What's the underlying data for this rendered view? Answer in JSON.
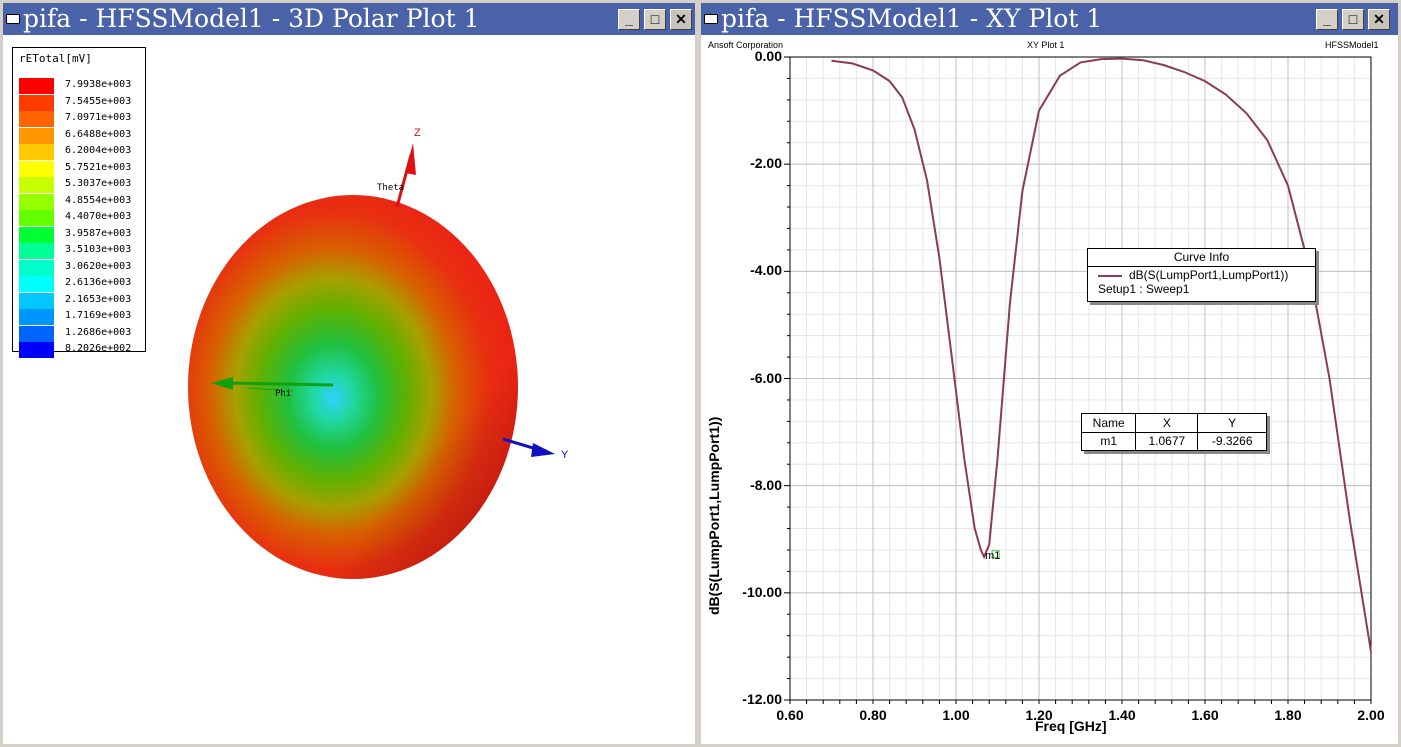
{
  "left_window": {
    "title": "pifa - HFSSModel1 - 3D Polar Plot 1",
    "legend": {
      "title": "rETotal[mV]",
      "entries": [
        {
          "value": "7.9938e+003",
          "color": "#ff0000"
        },
        {
          "value": "7.5455e+003",
          "color": "#ff3c00"
        },
        {
          "value": "7.0971e+003",
          "color": "#ff6400"
        },
        {
          "value": "6.6488e+003",
          "color": "#ff9600"
        },
        {
          "value": "6.2004e+003",
          "color": "#ffc800"
        },
        {
          "value": "5.7521e+003",
          "color": "#ffff00"
        },
        {
          "value": "5.3037e+003",
          "color": "#c8ff00"
        },
        {
          "value": "4.8554e+003",
          "color": "#96ff00"
        },
        {
          "value": "4.4070e+003",
          "color": "#64ff00"
        },
        {
          "value": "3.9587e+003",
          "color": "#00ff32"
        },
        {
          "value": "3.5103e+003",
          "color": "#00ff96"
        },
        {
          "value": "3.0620e+003",
          "color": "#00ffc8"
        },
        {
          "value": "2.6136e+003",
          "color": "#00ffff"
        },
        {
          "value": "2.1653e+003",
          "color": "#00c8ff"
        },
        {
          "value": "1.7169e+003",
          "color": "#0096ff"
        },
        {
          "value": "1.2686e+003",
          "color": "#0064ff"
        },
        {
          "value": "8.2026e+002",
          "color": "#0000ff"
        }
      ]
    },
    "axes": {
      "z": "Z",
      "y": "Y",
      "theta": "Theta",
      "phi": "Phi"
    }
  },
  "right_window": {
    "title": "pifa - HFSSModel1 - XY Plot 1",
    "header_left": "Ansoft Corporation",
    "header_center": "XY Plot 1",
    "header_right": "HFSSModel1",
    "curve_info": {
      "title": "Curve Info",
      "trace": "dB(S(LumpPort1,LumpPort1))",
      "setup": "Setup1 : Sweep1",
      "color": "#8a3a5a"
    },
    "marker_table": {
      "headers": [
        "Name",
        "X",
        "Y"
      ],
      "row": [
        "m1",
        "1.0677",
        "-9.3266"
      ]
    },
    "marker_label": "m1"
  },
  "chart_data": {
    "type": "line",
    "xlabel": "Freq [GHz]",
    "ylabel": "dB(S(LumpPort1,LumpPort1))",
    "xlim": [
      0.6,
      2.0
    ],
    "ylim": [
      -12,
      0
    ],
    "xticks": [
      "0.60",
      "0.80",
      "1.00",
      "1.20",
      "1.40",
      "1.60",
      "1.80",
      "2.00"
    ],
    "yticks": [
      "0.00",
      "-2.00",
      "-4.00",
      "-6.00",
      "-8.00",
      "-10.00",
      "-12.00"
    ],
    "grid": true,
    "series": [
      {
        "name": "dB(S(LumpPort1,LumpPort1))",
        "x": [
          0.7,
          0.75,
          0.8,
          0.84,
          0.87,
          0.9,
          0.93,
          0.96,
          0.99,
          1.02,
          1.045,
          1.06,
          1.0677,
          1.08,
          1.1,
          1.13,
          1.16,
          1.2,
          1.25,
          1.3,
          1.35,
          1.4,
          1.45,
          1.5,
          1.55,
          1.6,
          1.65,
          1.7,
          1.75,
          1.8,
          1.85,
          1.9,
          1.95,
          2.0
        ],
        "y": [
          -0.07,
          -0.12,
          -0.25,
          -0.45,
          -0.75,
          -1.35,
          -2.3,
          -3.75,
          -5.6,
          -7.5,
          -8.8,
          -9.2,
          -9.33,
          -9.1,
          -7.5,
          -4.6,
          -2.5,
          -1.0,
          -0.35,
          -0.1,
          -0.04,
          -0.03,
          -0.06,
          -0.15,
          -0.28,
          -0.45,
          -0.7,
          -1.05,
          -1.55,
          -2.4,
          -3.9,
          -6.0,
          -8.7,
          -11.1
        ]
      }
    ],
    "marker": {
      "name": "m1",
      "x": 1.0677,
      "y": -9.3266
    }
  }
}
